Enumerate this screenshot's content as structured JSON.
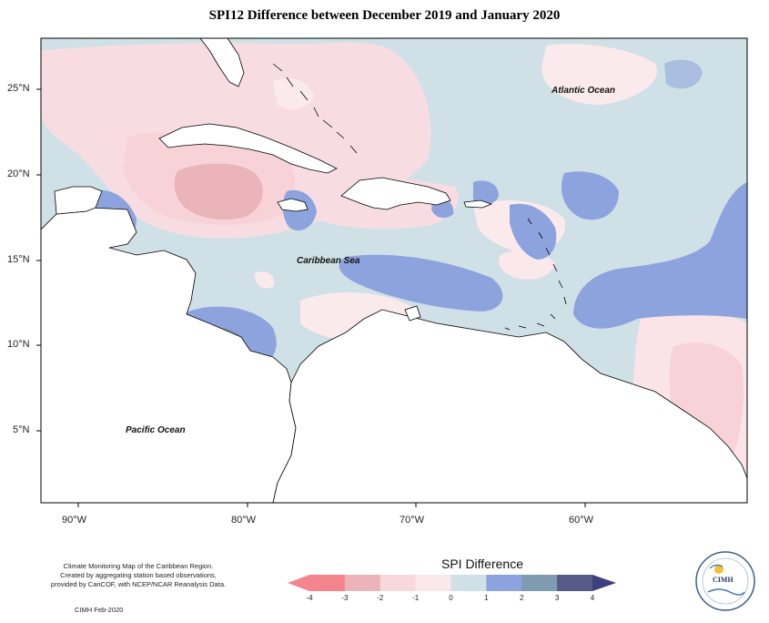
{
  "title": "SPI12 Difference between December 2019 and January 2020",
  "map": {
    "lon_labels": [
      "90°W",
      "80°W",
      "70°W",
      "60°W"
    ],
    "lat_labels": [
      "25°N",
      "20°N",
      "15°N",
      "10°N",
      "5°N"
    ],
    "ocean_labels": {
      "atlantic": "Atlantic Ocean",
      "caribbean": "Caribbean Sea",
      "pacific": "Pacific Ocean"
    },
    "land_color": "#ffffff",
    "coast_color": "#000000"
  },
  "legend": {
    "title": "SPI Difference",
    "ticks": [
      "-4",
      "-3",
      "-2",
      "-1",
      "0",
      "1",
      "2",
      "3",
      "4"
    ],
    "colors": [
      "#f4858c",
      "#eab4b8",
      "#f7d8dc",
      "#fbe8ea",
      "#cfe0e6",
      "#8da3de",
      "#7f9bb0",
      "#565b88",
      "#3c3f7e"
    ]
  },
  "footnote": {
    "line1": "Climate Monitoring Map of the Caribbean Region.",
    "line2": "Created by aggregating station based observations,",
    "line3": "provided by CariCOF, with NCEP/NCAR Reanalysis Data.",
    "credit": "CIMH Feb-2020"
  },
  "logo": {
    "text": "CIMH"
  }
}
